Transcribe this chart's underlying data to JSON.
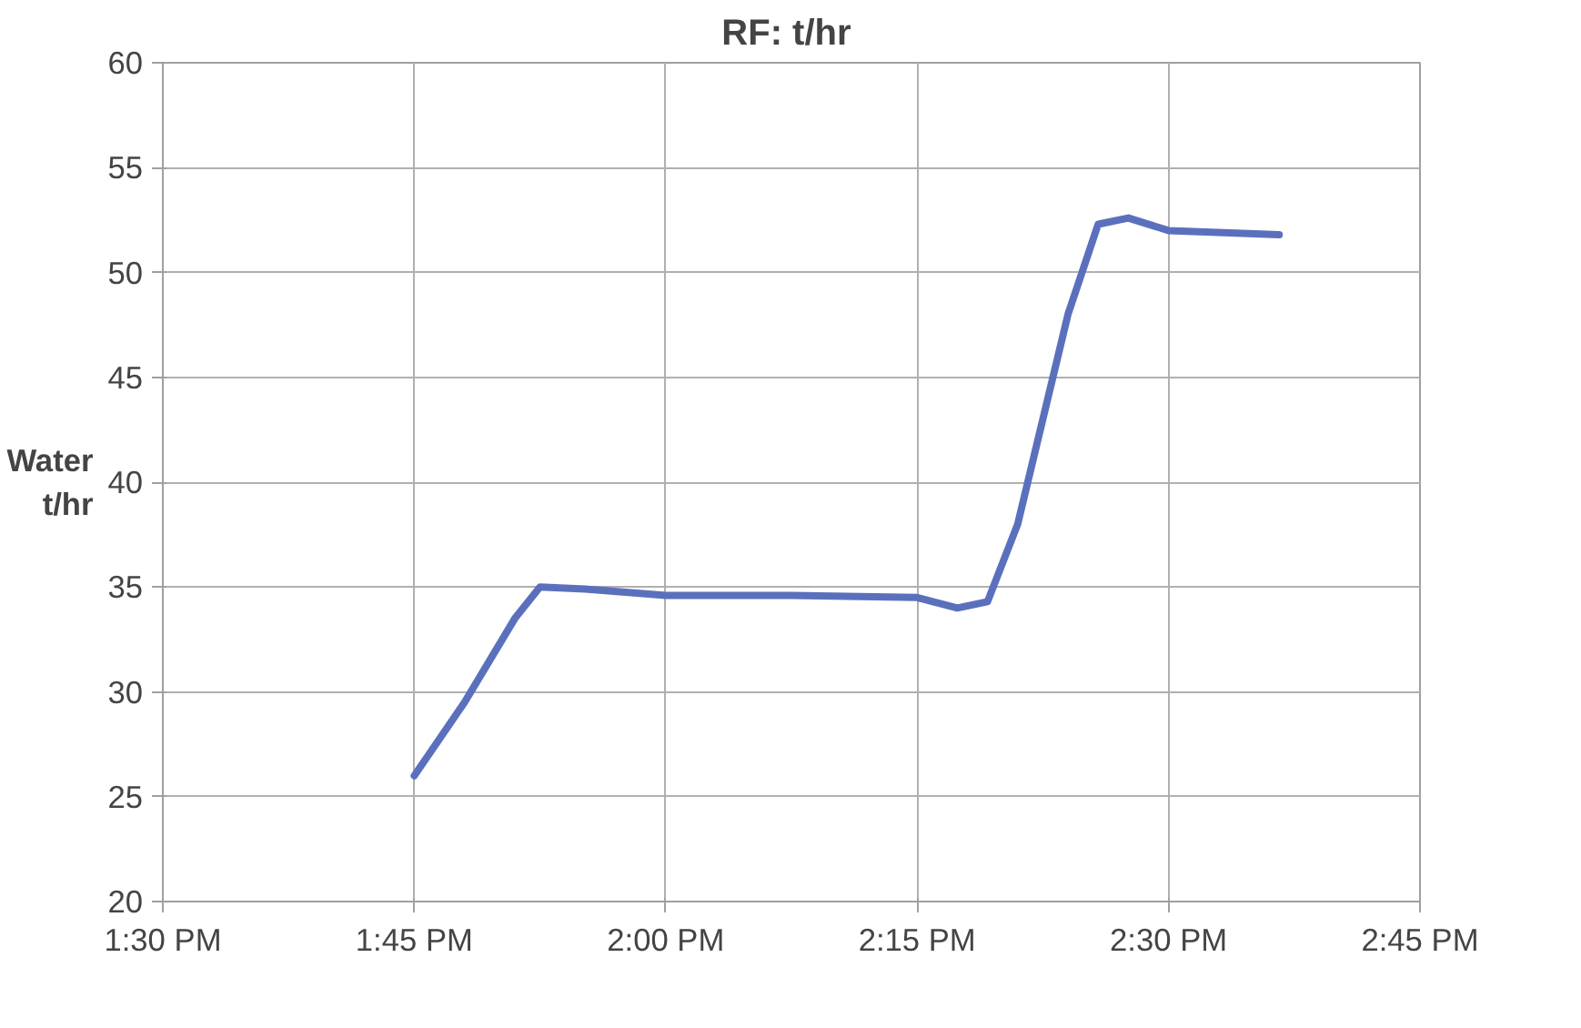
{
  "chart_data": {
    "type": "line",
    "title": "RF:  t/hr",
    "ylabel": "Water\nt/hr",
    "x": [
      13.75,
      13.8,
      13.85,
      13.875,
      13.92,
      14.0,
      14.125,
      14.25,
      14.29,
      14.32,
      14.35,
      14.4,
      14.43,
      14.46,
      14.5,
      14.61
    ],
    "series": [
      {
        "color": "#5b70bd",
        "values": [
          26,
          29.5,
          33.5,
          35,
          34.9,
          34.6,
          34.6,
          34.5,
          34.0,
          34.3,
          38,
          48,
          52.3,
          52.6,
          52,
          51.8
        ]
      }
    ],
    "xlim": [
      13.5,
      14.75
    ],
    "xticks": [
      {
        "value": 13.5,
        "label": "1:30 PM"
      },
      {
        "value": 13.75,
        "label": "1:45 PM"
      },
      {
        "value": 14.0,
        "label": "2:00 PM"
      },
      {
        "value": 14.25,
        "label": "2:15 PM"
      },
      {
        "value": 14.5,
        "label": "2:30 PM"
      },
      {
        "value": 14.75,
        "label": "2:45 PM"
      }
    ],
    "ylim": [
      20,
      60
    ],
    "yticks": [
      20,
      25,
      30,
      35,
      40,
      45,
      50,
      55,
      60
    ],
    "grid": true,
    "marker": "none",
    "line_style": "solid"
  }
}
